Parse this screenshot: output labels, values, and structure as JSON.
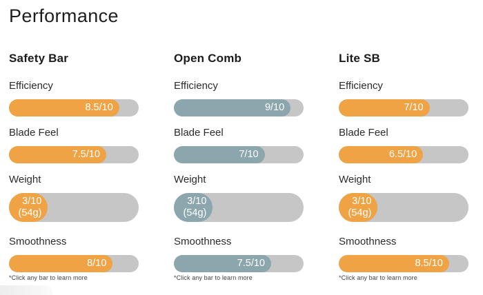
{
  "page": {
    "title": "Performance",
    "footnote": "*Click any bar to learn more"
  },
  "colors": {
    "orange": "#EFA344",
    "blue_gray": "#8CA6AE",
    "track_gray": "#C6C6C6",
    "bar_text": "#FFFFFF"
  },
  "columns": [
    {
      "name": "Safety Bar",
      "accent": "#EFA344",
      "metrics": [
        {
          "label": "Efficiency",
          "value": 8.5,
          "score": "8.5/10"
        },
        {
          "label": "Blade Feel",
          "value": 7.5,
          "score": "7.5/10"
        },
        {
          "label": "Weight",
          "value": 3,
          "score": "3/10",
          "sub": "(54g)",
          "tall": true
        },
        {
          "label": "Smoothness",
          "value": 8,
          "score": "8/10"
        }
      ]
    },
    {
      "name": "Open Comb",
      "accent": "#8CA6AE",
      "metrics": [
        {
          "label": "Efficiency",
          "value": 9,
          "score": "9/10"
        },
        {
          "label": "Blade Feel",
          "value": 7,
          "score": "7/10"
        },
        {
          "label": "Weight",
          "value": 3,
          "score": "3/10",
          "sub": "(54g)",
          "tall": true
        },
        {
          "label": "Smoothness",
          "value": 7.5,
          "score": "7.5/10"
        }
      ]
    },
    {
      "name": "Lite SB",
      "accent": "#EFA344",
      "metrics": [
        {
          "label": "Efficiency",
          "value": 7,
          "score": "7/10"
        },
        {
          "label": "Blade Feel",
          "value": 6.5,
          "score": "6.5/10"
        },
        {
          "label": "Weight",
          "value": 3,
          "score": "3/10",
          "sub": "(54g)",
          "tall": true
        },
        {
          "label": "Smoothness",
          "value": 8.5,
          "score": "8.5/10"
        }
      ]
    }
  ],
  "chart_data": {
    "type": "bar",
    "title": "Performance",
    "categories": [
      "Efficiency",
      "Blade Feel",
      "Weight",
      "Smoothness"
    ],
    "series": [
      {
        "name": "Safety Bar",
        "values": [
          8.5,
          7.5,
          3,
          8
        ],
        "color": "#EFA344"
      },
      {
        "name": "Open Comb",
        "values": [
          9,
          7,
          3,
          7.5
        ],
        "color": "#8CA6AE"
      },
      {
        "name": "Lite SB",
        "values": [
          7,
          6.5,
          3,
          8.5
        ],
        "color": "#EFA344"
      }
    ],
    "value_max": 10,
    "value_labels": [
      [
        "8.5/10",
        "7.5/10",
        "3/10 (54g)",
        "8/10"
      ],
      [
        "9/10",
        "7/10",
        "3/10 (54g)",
        "7.5/10"
      ],
      [
        "7/10",
        "6.5/10",
        "3/10 (54g)",
        "8.5/10"
      ]
    ],
    "annotations": [
      "*Click any bar to learn more"
    ],
    "legend_position": "none",
    "grid": false
  }
}
